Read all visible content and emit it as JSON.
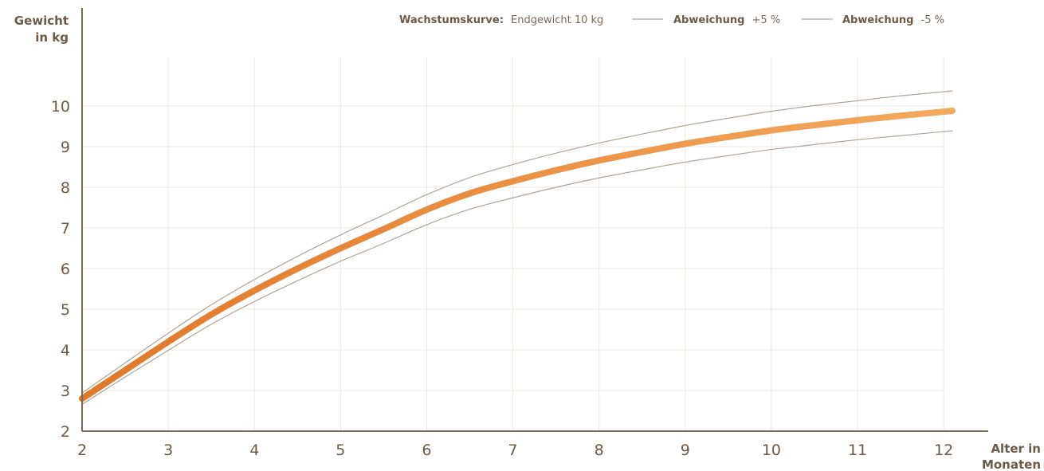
{
  "chart_data": {
    "type": "line",
    "ylabel_lines": [
      "Gewicht",
      "in kg"
    ],
    "xlabel_lines": [
      "Alter in",
      "Monaten"
    ],
    "xlim": [
      2,
      12.1
    ],
    "ylim": [
      2,
      11
    ],
    "x_ticks": [
      2,
      3,
      4,
      5,
      6,
      7,
      8,
      9,
      10,
      11,
      12
    ],
    "y_ticks": [
      2,
      3,
      4,
      5,
      6,
      7,
      8,
      9,
      10
    ],
    "grid": true,
    "legend_position": "top",
    "colors": {
      "axis": "#7a6a5a",
      "grid": "#ece8e4",
      "main_start": "#e0782a",
      "main_end": "#f2aa60",
      "deviation": "#b0a498"
    },
    "series": [
      {
        "legend_bold": "Wachstumskurve:",
        "legend_rest": "Endgewicht 10 kg",
        "x": [
          2,
          2.5,
          3,
          3.5,
          4,
          4.5,
          5,
          5.5,
          6,
          6.5,
          7,
          7.5,
          8,
          8.5,
          9,
          9.5,
          10,
          10.5,
          11,
          11.5,
          12.1
        ],
        "y": [
          2.8,
          3.5,
          4.2,
          4.87,
          5.46,
          6.0,
          6.5,
          6.97,
          7.45,
          7.85,
          8.15,
          8.42,
          8.66,
          8.87,
          9.07,
          9.24,
          9.4,
          9.53,
          9.65,
          9.76,
          9.88
        ]
      },
      {
        "legend_bold": "Abweichung",
        "legend_rest": "+5 %",
        "x": [
          2,
          2.5,
          3,
          3.5,
          4,
          4.5,
          5,
          5.5,
          6,
          6.5,
          7,
          7.5,
          8,
          8.5,
          9,
          9.5,
          10,
          10.5,
          11,
          11.5,
          12.1
        ],
        "y": [
          2.94,
          3.68,
          4.41,
          5.11,
          5.73,
          6.3,
          6.83,
          7.32,
          7.82,
          8.24,
          8.56,
          8.84,
          9.09,
          9.31,
          9.52,
          9.7,
          9.87,
          10.01,
          10.13,
          10.25,
          10.37
        ]
      },
      {
        "legend_bold": "Abweichung",
        "legend_rest": "-5 %",
        "x": [
          2,
          2.5,
          3,
          3.5,
          4,
          4.5,
          5,
          5.5,
          6,
          6.5,
          7,
          7.5,
          8,
          8.5,
          9,
          9.5,
          10,
          10.5,
          11,
          11.5,
          12.1
        ],
        "y": [
          2.66,
          3.33,
          3.99,
          4.63,
          5.19,
          5.7,
          6.18,
          6.62,
          7.08,
          7.46,
          7.74,
          8.0,
          8.23,
          8.43,
          8.62,
          8.78,
          8.93,
          9.05,
          9.17,
          9.27,
          9.39
        ]
      }
    ]
  }
}
